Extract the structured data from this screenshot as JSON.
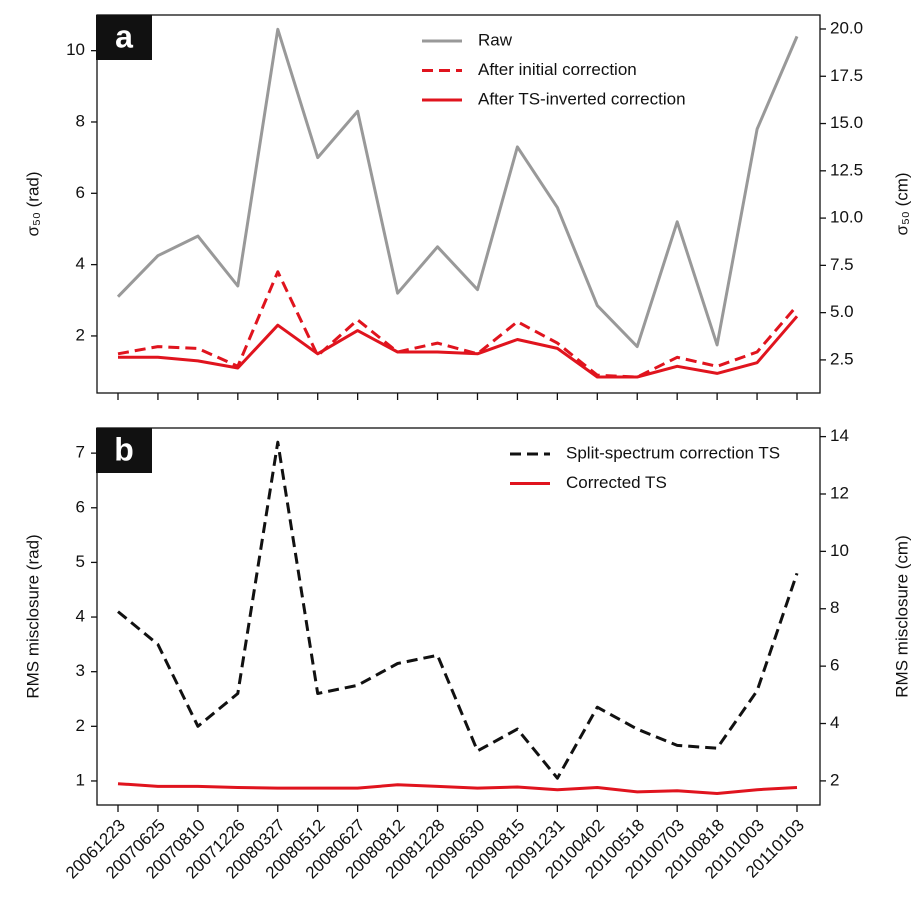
{
  "chart_data": [
    {
      "type": "line",
      "label": "a",
      "ylabel": "σ₅₀ (rad)",
      "y2label": "σ₅₀ (cm)",
      "ylim": [
        0.4,
        11.0
      ],
      "yticks": [
        2,
        4,
        6,
        8,
        10
      ],
      "y2lim": [
        0.75,
        20.74
      ],
      "y2ticks": [
        2.5,
        {
          "value": 5,
          "label": "5.0"
        },
        7.5,
        {
          "value": 10,
          "label": "10.0"
        },
        12.5,
        {
          "value": 15,
          "label": "15.0"
        },
        17.5,
        {
          "value": 20,
          "label": "20.0"
        }
      ],
      "legend": "upper center",
      "series": [
        {
          "name": "Raw",
          "color": "#999999",
          "linestyle": "solid",
          "values": [
            3.1,
            4.25,
            4.8,
            3.4,
            10.6,
            7.0,
            8.3,
            3.2,
            4.5,
            3.3,
            7.3,
            5.6,
            2.85,
            1.7,
            5.2,
            1.75,
            7.8,
            10.4
          ]
        },
        {
          "name": "After initial correction",
          "color": "#e0141e",
          "linestyle": "dashed",
          "values": [
            1.5,
            1.7,
            1.65,
            1.15,
            3.8,
            1.45,
            2.45,
            1.55,
            1.8,
            1.5,
            2.4,
            1.8,
            0.9,
            0.85,
            1.4,
            1.15,
            1.55,
            2.85
          ]
        },
        {
          "name": "After TS-inverted correction",
          "color": "#e0141e",
          "linestyle": "solid",
          "values": [
            1.4,
            1.4,
            1.3,
            1.1,
            2.3,
            1.5,
            2.15,
            1.55,
            1.55,
            1.5,
            1.9,
            1.65,
            0.85,
            0.85,
            1.15,
            0.95,
            1.25,
            2.55
          ]
        }
      ]
    },
    {
      "type": "line",
      "label": "b",
      "ylabel": "RMS misclosure (rad)",
      "y2label": "RMS misclosure (cm)",
      "categories": [
        "20061223",
        "20070625",
        "20070810",
        "20071226",
        "20080327",
        "20080512",
        "20080627",
        "20080812",
        "20081228",
        "20090630",
        "20090815",
        "20091231",
        "20100402",
        "20100518",
        "20100703",
        "20100818",
        "20101003",
        "20110103"
      ],
      "ylim": [
        0.56,
        7.46
      ],
      "yticks": [
        1,
        2,
        3,
        4,
        5,
        6,
        7
      ],
      "y2lim": [
        1.16,
        14.3
      ],
      "y2ticks": [
        2,
        4,
        6,
        8,
        10,
        12,
        14
      ],
      "legend": "upper right",
      "series": [
        {
          "name": "Split-spectrum correction TS",
          "color": "#111111",
          "linestyle": "dashed",
          "values": [
            4.1,
            3.5,
            2.0,
            2.6,
            7.2,
            2.6,
            2.75,
            3.15,
            3.3,
            1.55,
            1.95,
            1.05,
            2.35,
            1.95,
            1.65,
            1.6,
            2.65,
            4.8
          ]
        },
        {
          "name": "Corrected TS",
          "color": "#e0141e",
          "linestyle": "solid",
          "values": [
            0.95,
            0.9,
            0.9,
            0.88,
            0.87,
            0.87,
            0.87,
            0.93,
            0.9,
            0.87,
            0.89,
            0.84,
            0.88,
            0.8,
            0.82,
            0.77,
            0.84,
            0.88
          ]
        }
      ]
    }
  ]
}
